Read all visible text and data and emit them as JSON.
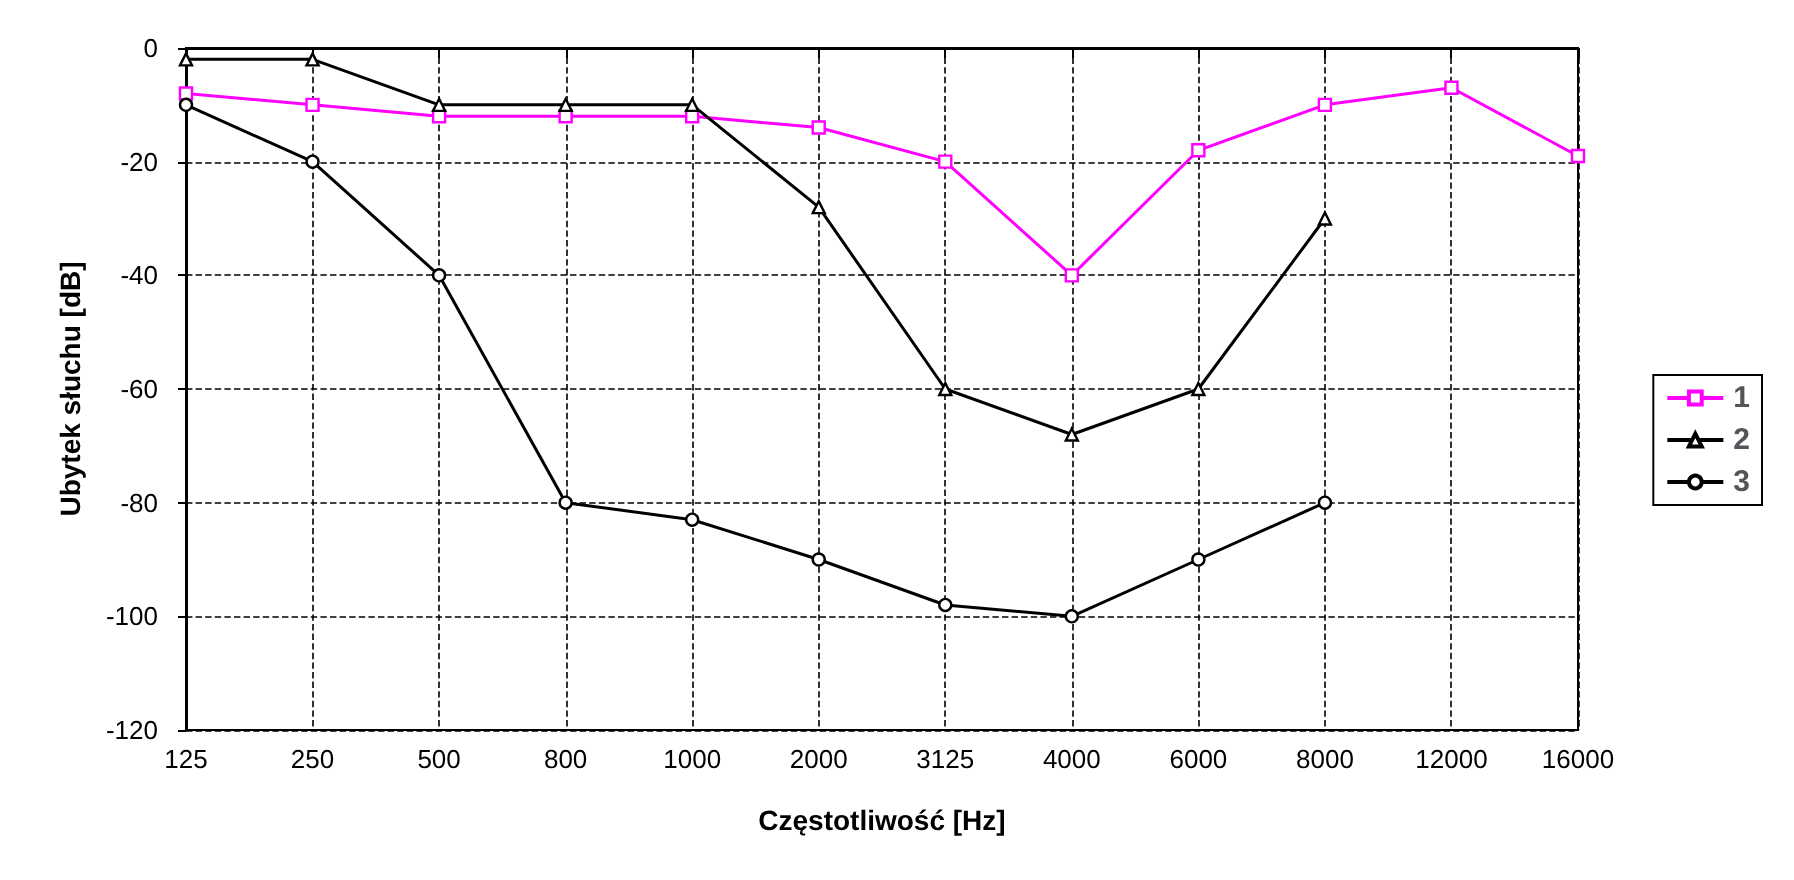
{
  "chart_data": {
    "type": "line",
    "xlabel": "Częstotliwość [Hz]",
    "ylabel": "Ubytek słuchu [dB]",
    "categories": [
      "125",
      "250",
      "500",
      "800",
      "1000",
      "2000",
      "3125",
      "4000",
      "6000",
      "8000",
      "12000",
      "16000"
    ],
    "series": [
      {
        "name": "1",
        "color": "#ff00ff",
        "marker": "square",
        "values": [
          -8,
          -10,
          -12,
          -12,
          -12,
          -14,
          -20,
          -40,
          -18,
          -10,
          -7,
          -19
        ]
      },
      {
        "name": "2",
        "color": "#000000",
        "marker": "triangle",
        "values": [
          -2,
          -2,
          -10,
          -10,
          -10,
          -28,
          -60,
          -68,
          -60,
          -30,
          null,
          null
        ]
      },
      {
        "name": "3",
        "color": "#000000",
        "marker": "circle",
        "values": [
          -10,
          -20,
          -40,
          -80,
          -83,
          -90,
          -98,
          -100,
          -90,
          -80,
          null,
          null
        ]
      }
    ],
    "ylim": [
      -120,
      0
    ],
    "yticks": [
      -120,
      -100,
      -80,
      -60,
      -40,
      -20,
      0
    ],
    "grid": true,
    "legend": "right",
    "line_style": "solid"
  }
}
